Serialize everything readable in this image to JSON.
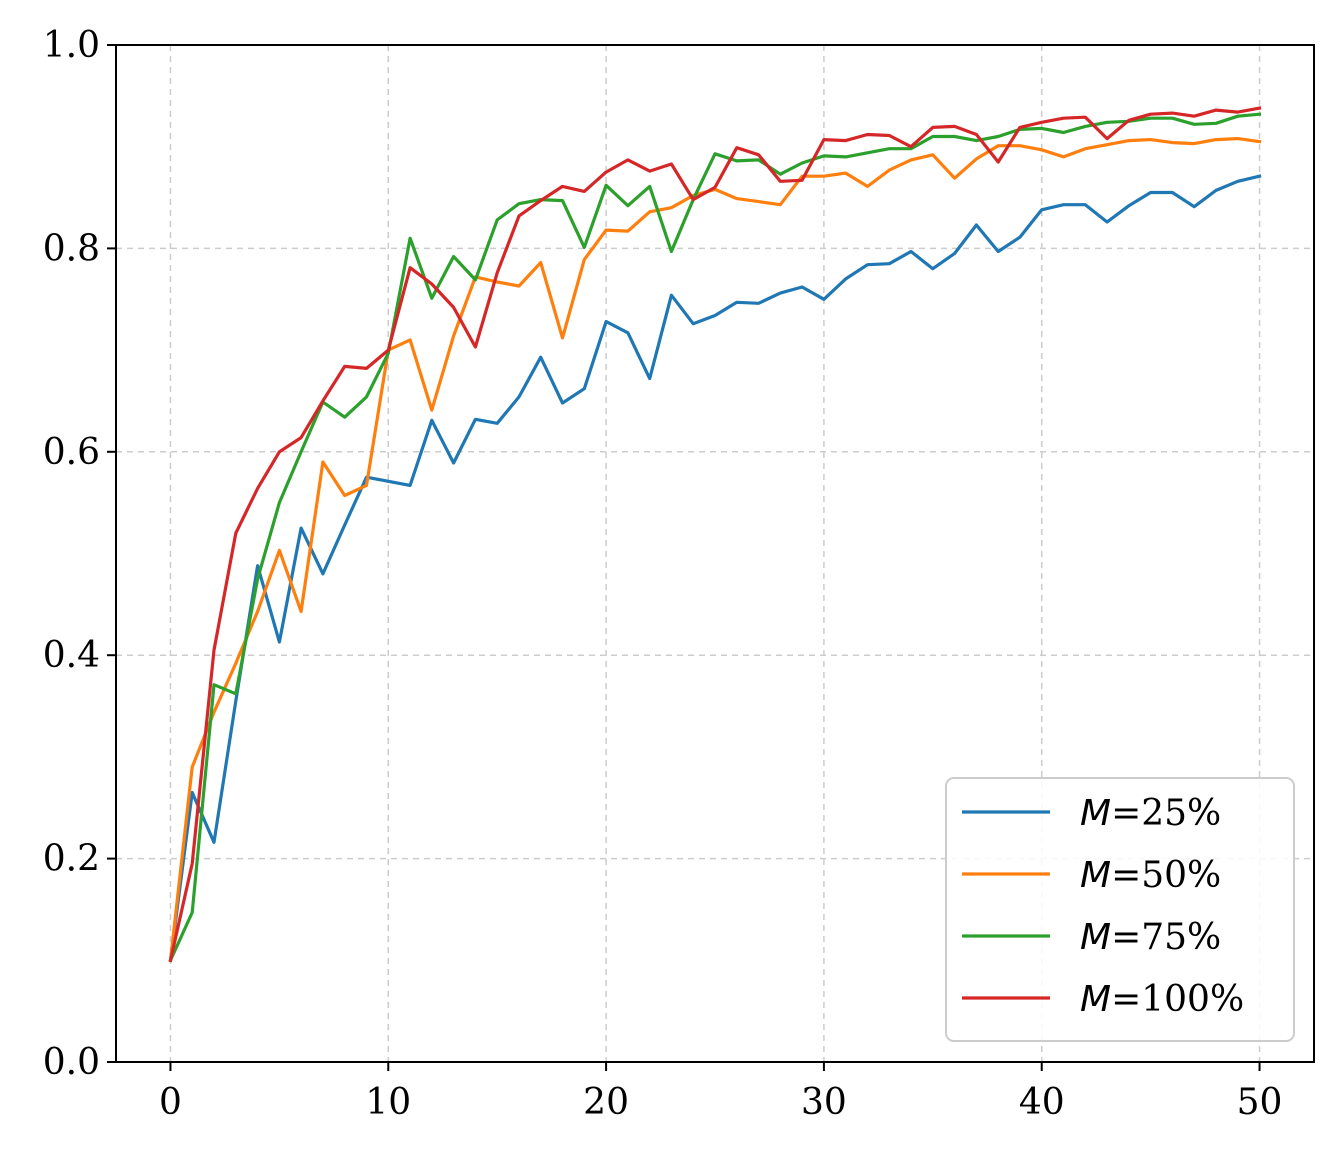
{
  "chart_data": {
    "type": "line",
    "title": "",
    "xlabel": "",
    "ylabel": "",
    "xlim": [
      -2.5,
      52.5
    ],
    "ylim": [
      0.0,
      1.0
    ],
    "xticks": [
      0,
      10,
      20,
      30,
      40,
      50
    ],
    "xtick_labels": [
      "0",
      "10",
      "20",
      "30",
      "40",
      "50"
    ],
    "yticks": [
      0.0,
      0.2,
      0.4,
      0.6,
      0.8,
      1.0
    ],
    "ytick_labels": [
      "0.0",
      "0.2",
      "0.4",
      "0.6",
      "0.8",
      "1.0"
    ],
    "grid": true,
    "legend_position": "lower-right",
    "x": [
      0,
      1,
      2,
      3,
      4,
      5,
      6,
      7,
      8,
      9,
      10,
      11,
      12,
      13,
      14,
      15,
      16,
      17,
      18,
      19,
      20,
      21,
      22,
      23,
      24,
      25,
      26,
      27,
      28,
      29,
      30,
      31,
      32,
      33,
      34,
      35,
      36,
      37,
      38,
      39,
      40,
      41,
      42,
      43,
      44,
      45,
      46,
      47,
      48,
      49,
      50
    ],
    "series": [
      {
        "name": "M=25%",
        "name_prefix": "M",
        "name_suffix": "=25%",
        "color": "#1f77b4",
        "values": [
          0.1,
          0.265,
          0.216,
          0.355,
          0.488,
          0.413,
          0.525,
          0.48,
          0.528,
          0.575,
          0.571,
          0.567,
          0.631,
          0.589,
          0.632,
          0.628,
          0.654,
          0.693,
          0.648,
          0.662,
          0.728,
          0.717,
          0.672,
          0.754,
          0.726,
          0.734,
          0.747,
          0.746,
          0.756,
          0.762,
          0.75,
          0.77,
          0.784,
          0.785,
          0.797,
          0.78,
          0.795,
          0.823,
          0.797,
          0.811,
          0.838,
          0.843,
          0.843,
          0.826,
          0.842,
          0.855,
          0.855,
          0.841,
          0.857,
          0.866,
          0.871
        ]
      },
      {
        "name": "M=50%",
        "name_prefix": "M",
        "name_suffix": "=50%",
        "color": "#ff7f0e",
        "values": [
          0.1,
          0.29,
          0.344,
          0.392,
          0.443,
          0.503,
          0.443,
          0.59,
          0.557,
          0.567,
          0.7,
          0.71,
          0.641,
          0.714,
          0.772,
          0.767,
          0.763,
          0.786,
          0.712,
          0.789,
          0.818,
          0.817,
          0.836,
          0.84,
          0.852,
          0.858,
          0.849,
          0.846,
          0.843,
          0.871,
          0.871,
          0.874,
          0.861,
          0.877,
          0.887,
          0.892,
          0.869,
          0.888,
          0.901,
          0.901,
          0.897,
          0.89,
          0.898,
          0.902,
          0.906,
          0.907,
          0.904,
          0.903,
          0.907,
          0.908,
          0.905
        ]
      },
      {
        "name": "M=75%",
        "name_prefix": "M",
        "name_suffix": "=75%",
        "color": "#2ca02c",
        "values": [
          0.1,
          0.147,
          0.371,
          0.362,
          0.475,
          0.55,
          0.6,
          0.649,
          0.634,
          0.654,
          0.697,
          0.81,
          0.751,
          0.792,
          0.769,
          0.828,
          0.844,
          0.848,
          0.847,
          0.801,
          0.862,
          0.842,
          0.861,
          0.797,
          0.848,
          0.893,
          0.886,
          0.887,
          0.873,
          0.884,
          0.891,
          0.89,
          0.894,
          0.898,
          0.898,
          0.91,
          0.91,
          0.906,
          0.91,
          0.917,
          0.918,
          0.914,
          0.92,
          0.924,
          0.925,
          0.928,
          0.928,
          0.922,
          0.923,
          0.93,
          0.932
        ]
      },
      {
        "name": "M=100%",
        "name_prefix": "M",
        "name_suffix": "=100%",
        "color": "#d62728",
        "values": [
          0.1,
          0.195,
          0.405,
          0.52,
          0.564,
          0.6,
          0.614,
          0.65,
          0.684,
          0.682,
          0.7,
          0.781,
          0.765,
          0.742,
          0.703,
          0.776,
          0.832,
          0.847,
          0.861,
          0.856,
          0.875,
          0.887,
          0.876,
          0.883,
          0.848,
          0.86,
          0.899,
          0.892,
          0.866,
          0.867,
          0.907,
          0.906,
          0.912,
          0.911,
          0.9,
          0.919,
          0.92,
          0.912,
          0.885,
          0.919,
          0.924,
          0.928,
          0.929,
          0.908,
          0.926,
          0.932,
          0.933,
          0.93,
          0.936,
          0.934,
          0.938
        ]
      }
    ]
  }
}
